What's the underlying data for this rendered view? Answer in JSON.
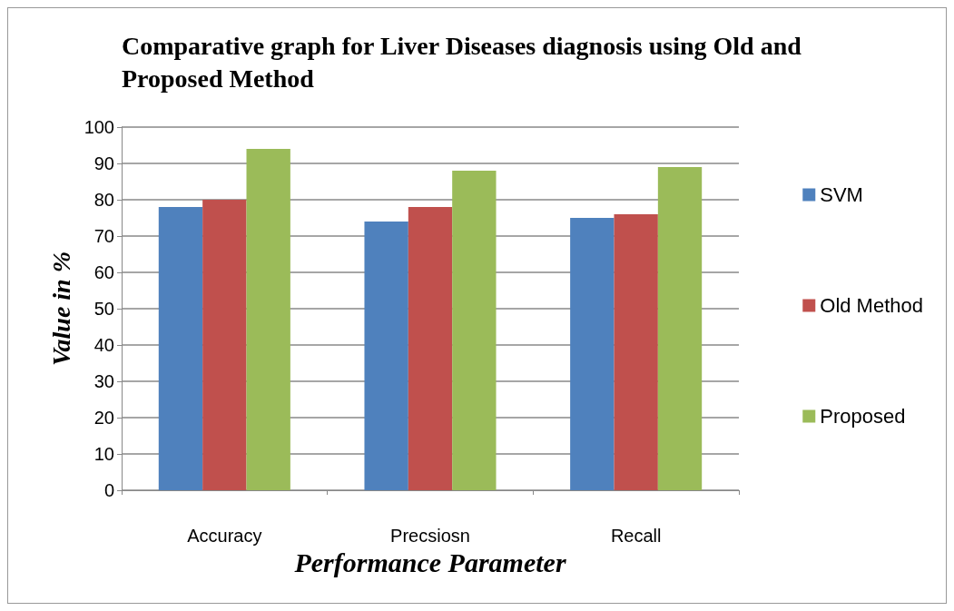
{
  "chart_data": {
    "type": "bar",
    "title": "Comparative graph for Liver Diseases diagnosis using Old and Proposed Method",
    "xlabel": "Performance Parameter",
    "ylabel": "Value in %",
    "categories": [
      "Accuracy",
      "Precsiosn",
      "Recall"
    ],
    "series": [
      {
        "name": "SVM",
        "color": "#4f81bd",
        "values": [
          78,
          74,
          75
        ]
      },
      {
        "name": "Old Method",
        "color": "#c0504d",
        "values": [
          80,
          78,
          76
        ]
      },
      {
        "name": "Proposed",
        "color": "#9bbb59",
        "values": [
          94,
          88,
          89
        ]
      }
    ],
    "ylim": [
      0,
      100
    ],
    "yticks": [
      0,
      10,
      20,
      30,
      40,
      50,
      60,
      70,
      80,
      90,
      100
    ],
    "grid": "y",
    "legend": "right"
  }
}
